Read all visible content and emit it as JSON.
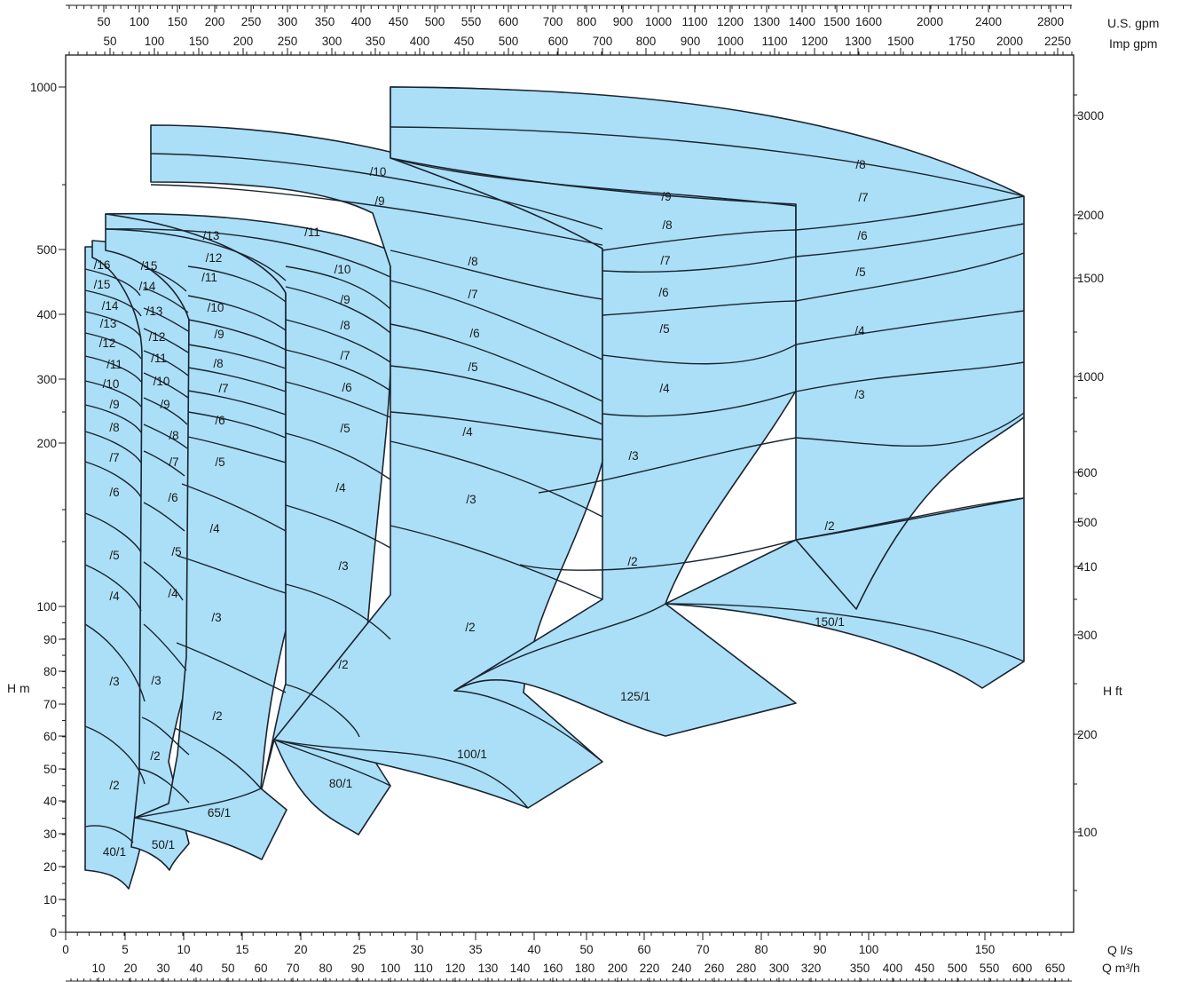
{
  "chart_data": {
    "type": "area",
    "title": "",
    "x_scale": "linear",
    "y_scale": "log",
    "xlim": [
      0,
      86
    ],
    "ylim": [
      0,
      1200
    ],
    "xlabel_primary": "Q l/s",
    "xlabel_secondary": "Q m³/h",
    "xlabel_top_1": "U.S. gpm",
    "xlabel_top_2": "Imp gpm",
    "ylabel_left": "H m",
    "ylabel_right": "H ft",
    "x_ticks_ls": [
      "0",
      "5",
      "10",
      "15",
      "20",
      "25",
      "30",
      "35",
      "40",
      "50",
      "60",
      "70",
      "80",
      "90",
      "100",
      "150"
    ],
    "x_ticks_m3h": [
      "10",
      "20",
      "30",
      "40",
      "50",
      "60",
      "70",
      "80",
      "90",
      "100",
      "110",
      "120",
      "130",
      "140",
      "160",
      "180",
      "200",
      "220",
      "240",
      "260",
      "280",
      "300",
      "320",
      "350",
      "400",
      "450",
      "500",
      "550",
      "600",
      "650"
    ],
    "x_ticks_usgpm": [
      "50",
      "100",
      "150",
      "200",
      "250",
      "300",
      "350",
      "400",
      "450",
      "500",
      "550",
      "600",
      "700",
      "800",
      "900",
      "1000",
      "1100",
      "1200",
      "1300",
      "1400",
      "1500",
      "1600",
      "2000",
      "2400",
      "2800"
    ],
    "x_ticks_impgpm": [
      "50",
      "100",
      "150",
      "200",
      "250",
      "300",
      "350",
      "400",
      "450",
      "500",
      "600",
      "700",
      "800",
      "900",
      "1000",
      "1100",
      "1200",
      "1300",
      "1500",
      "1750",
      "2000",
      "2250"
    ],
    "y_ticks_m": [
      "0",
      "10",
      "20",
      "30",
      "40",
      "50",
      "60",
      "70",
      "80",
      "90",
      "100",
      "200",
      "300",
      "400",
      "500",
      "1000"
    ],
    "y_ticks_ft": [
      "100",
      "200",
      "300",
      "410",
      "500",
      "600",
      "1000",
      "1500",
      "2000",
      "3000"
    ],
    "pump_families": [
      {
        "name": "40/1",
        "stages": [
          "40/1",
          "/2",
          "/3",
          "/4",
          "/5",
          "/6",
          "/7",
          "/8",
          "/9",
          "/10",
          "/11",
          "/12",
          "/13",
          "/14",
          "/15",
          "/16"
        ]
      },
      {
        "name": "50/1",
        "stages": [
          "50/1",
          "/2",
          "/3",
          "/4",
          "/5",
          "/6",
          "/7",
          "/8",
          "/9",
          "/10",
          "/11",
          "/12",
          "/13",
          "/14",
          "/15"
        ]
      },
      {
        "name": "65/1",
        "stages": [
          "65/1",
          "/2",
          "/3",
          "/4",
          "/5",
          "/6",
          "/7",
          "/8",
          "/9",
          "/10",
          "/11",
          "/12",
          "/13"
        ]
      },
      {
        "name": "80/1",
        "stages": [
          "80/1",
          "/2",
          "/3",
          "/4",
          "/5",
          "/6",
          "/7",
          "/8",
          "/9",
          "/10",
          "/11"
        ]
      },
      {
        "name": "100/1",
        "stages": [
          "100/1",
          "/2",
          "/3",
          "/4",
          "/5",
          "/6",
          "/7",
          "/8",
          "/9",
          "/10"
        ]
      },
      {
        "name": "125/1",
        "stages": [
          "125/1",
          "/2",
          "/3",
          "/4",
          "/5",
          "/6",
          "/7",
          "/8",
          "/9"
        ]
      },
      {
        "name": "150/1",
        "stages": [
          "150/1",
          "/2",
          "/3",
          "/4",
          "/5",
          "/6",
          "/7",
          "/8"
        ]
      }
    ],
    "colors": {
      "region_fill": "#aadff7",
      "outline": "#1a2430"
    }
  }
}
